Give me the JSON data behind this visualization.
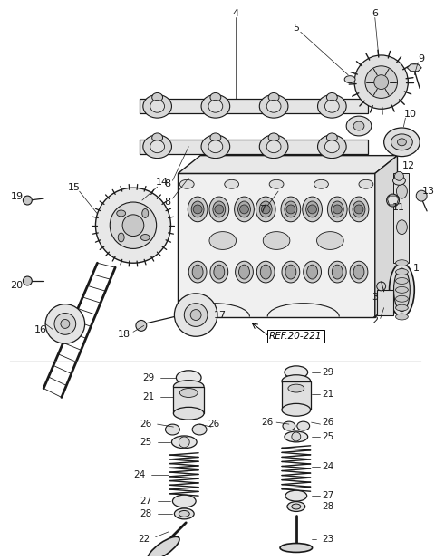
{
  "bg_color": "#ffffff",
  "line_color": "#1a1a1a",
  "ref_text": "REF.20-221",
  "figsize": [
    4.8,
    6.18
  ],
  "dpi": 100
}
